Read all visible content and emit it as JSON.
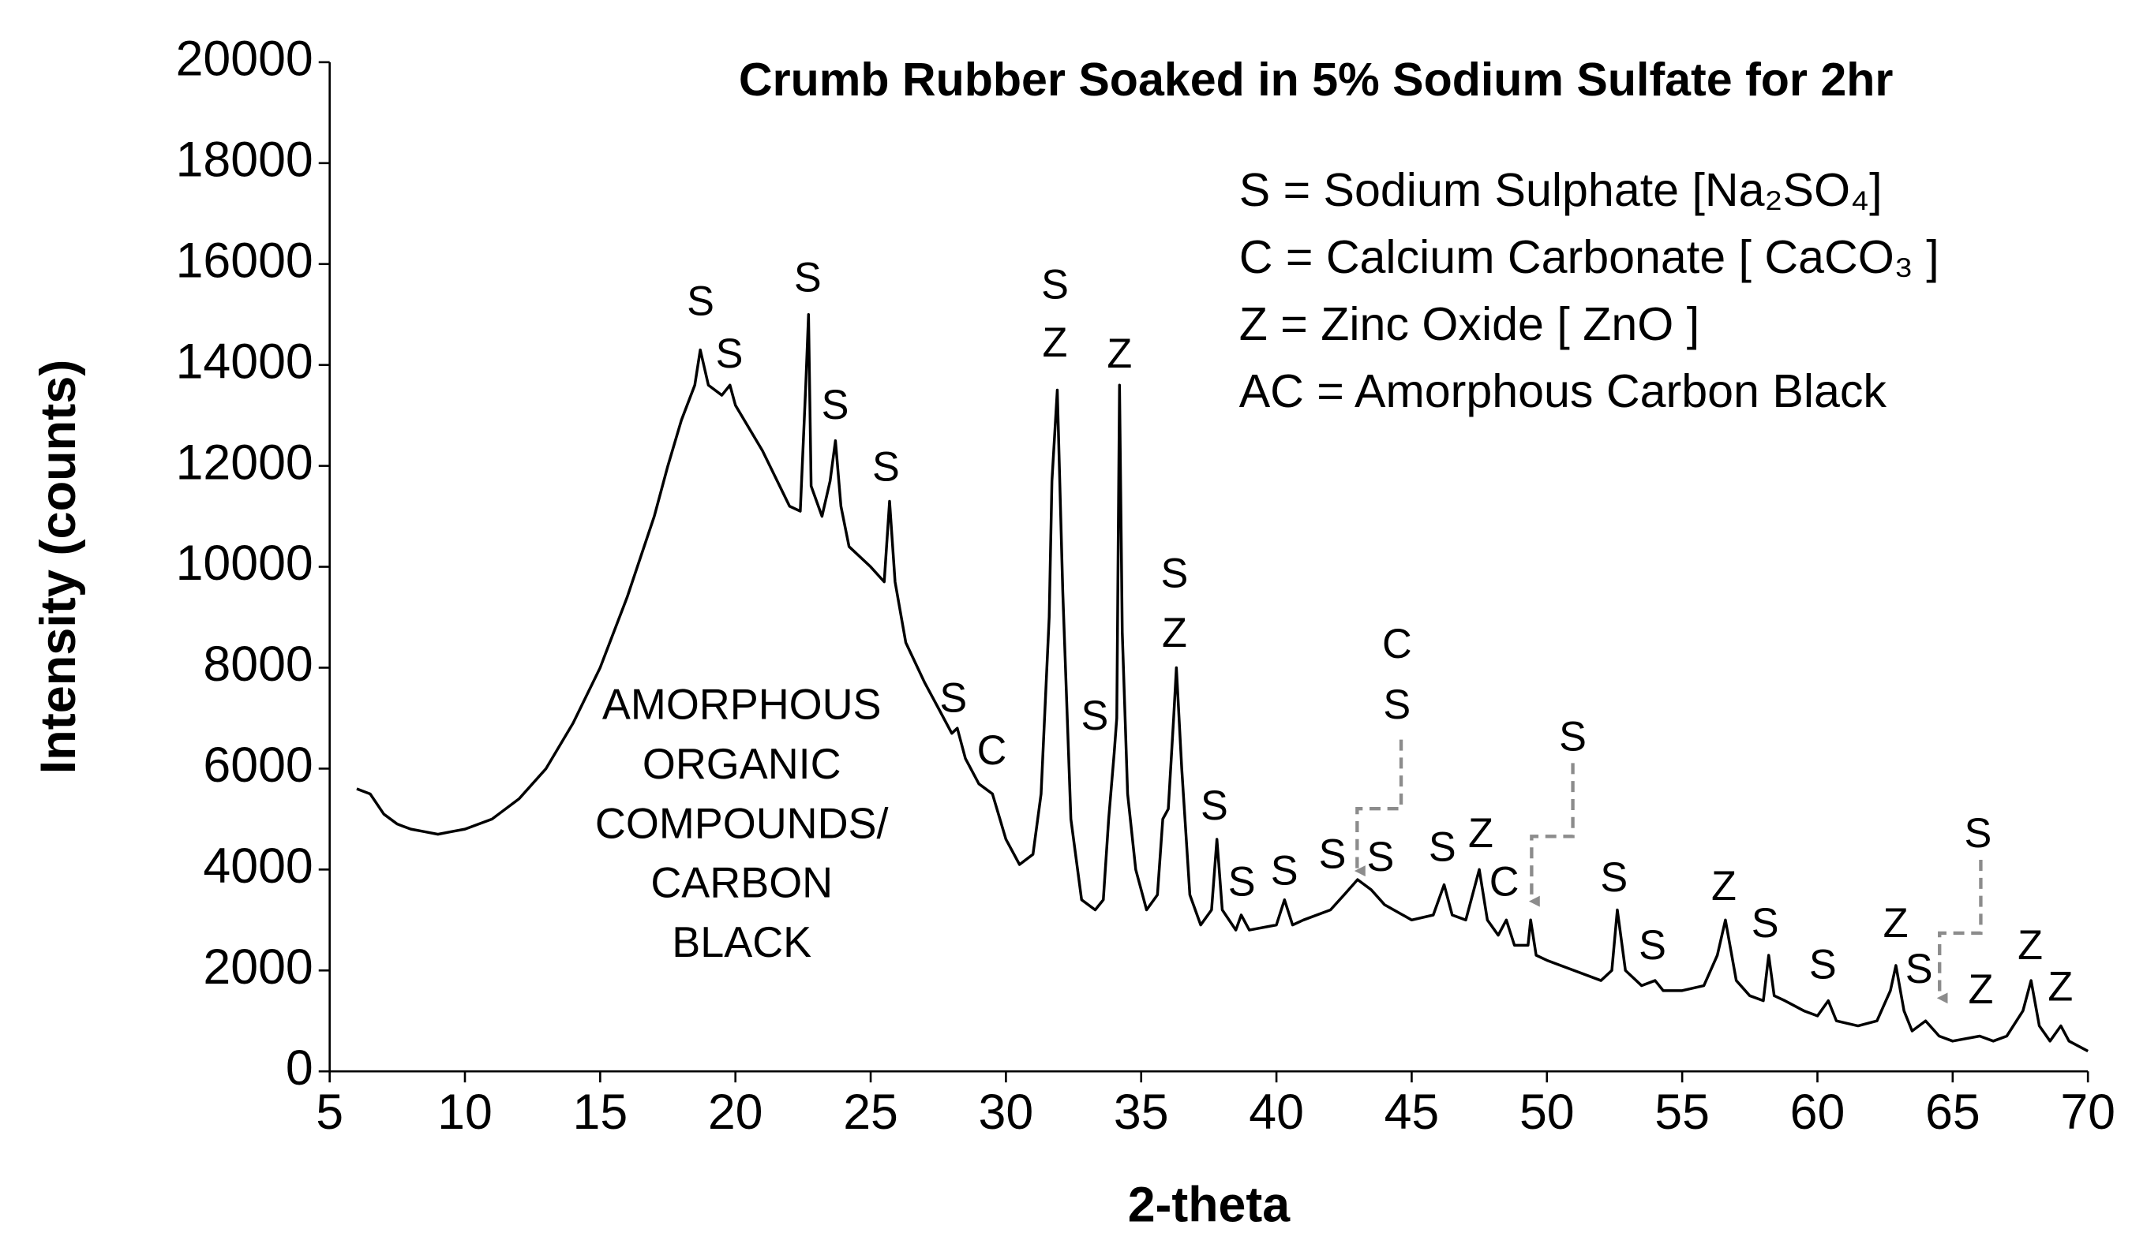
{
  "chart_data": {
    "type": "line",
    "title": "Crumb Rubber Soaked in 5% Sodium Sulfate for 2hr",
    "x_label": "2-theta",
    "y_label": "Intensity (counts)",
    "xlim": [
      5,
      70
    ],
    "xticks": [
      5,
      10,
      15,
      20,
      25,
      30,
      35,
      40,
      45,
      50,
      55,
      60,
      65,
      70
    ],
    "ylim": [
      0,
      20000
    ],
    "yticks": [
      0,
      2000,
      4000,
      6000,
      8000,
      10000,
      12000,
      14000,
      16000,
      18000,
      20000
    ],
    "legend_lines": [
      "S = Sodium Sulphate [Na₂SO₄]",
      "C = Calcium Carbonate [ CaCO₃ ]",
      "Z = Zinc Oxide [ ZnO ]",
      "AC = Amorphous Carbon Black"
    ],
    "region_label": [
      "AMORPHOUS",
      "ORGANIC",
      "COMPOUNDS/",
      "CARBON",
      "BLACK"
    ],
    "peak_labels": [
      "S",
      "S",
      "S",
      "S",
      "S",
      "S",
      "Z",
      "Z",
      "S",
      "S",
      "Z",
      "S",
      "C",
      "C",
      "S",
      "S",
      "S",
      "S",
      "S",
      "S",
      "S",
      "S",
      "Z",
      "C",
      "S",
      "S",
      "Z",
      "S",
      "S",
      "Z",
      "S",
      "Z",
      "S",
      "Z",
      "Z"
    ],
    "series": [
      {
        "name": "Intensity",
        "color": "#000000",
        "x": [
          6.0,
          6.5,
          7,
          7.5,
          8,
          8.5,
          9,
          9.5,
          10,
          11,
          12,
          13,
          14,
          15,
          16,
          17,
          17.5,
          18,
          18.5,
          18.7,
          19,
          19.5,
          19.8,
          20,
          21,
          22,
          22.4,
          22.6,
          22.7,
          22.8,
          23.2,
          23.5,
          23.7,
          23.9,
          24.2,
          25,
          25.5,
          25.7,
          25.9,
          26.3,
          27,
          27.5,
          28,
          28.2,
          28.5,
          29,
          29.5,
          30,
          30.5,
          31,
          31.3,
          31.6,
          31.7,
          31.9,
          32.1,
          32.4,
          32.8,
          33.3,
          33.6,
          33.8,
          34.0,
          34.1,
          34.2,
          34.3,
          34.5,
          34.8,
          35.2,
          35.6,
          35.8,
          36.0,
          36.2,
          36.3,
          36.5,
          36.8,
          37.2,
          37.6,
          37.8,
          38.0,
          38.5,
          38.7,
          39,
          40,
          40.3,
          40.6,
          41,
          42,
          42.5,
          43,
          43.5,
          44,
          45,
          45.8,
          46.2,
          46.5,
          47,
          47.5,
          47.8,
          48.2,
          48.5,
          48.8,
          49.3,
          49.4,
          49.6,
          50,
          51,
          52,
          52.4,
          52.6,
          52.9,
          53.5,
          54,
          54.3,
          55,
          55.8,
          56.3,
          56.6,
          57,
          57.5,
          58,
          58.2,
          58.4,
          58.8,
          59.5,
          60,
          60.4,
          60.7,
          61.5,
          62.2,
          62.7,
          62.9,
          63.2,
          63.5,
          64,
          64.5,
          65,
          66,
          66.5,
          67,
          67.6,
          67.9,
          68.2,
          68.6,
          69,
          69.3,
          70
        ],
        "values": [
          5600,
          5500,
          5100,
          4900,
          4800,
          4750,
          4700,
          4750,
          4800,
          5000,
          5400,
          6000,
          6900,
          8000,
          9400,
          11000,
          12000,
          12900,
          13600,
          14300,
          13600,
          13400,
          13600,
          13200,
          12300,
          11200,
          11100,
          13600,
          15000,
          11600,
          11000,
          11700,
          12500,
          11200,
          10400,
          10000,
          9700,
          11300,
          9700,
          8500,
          7700,
          7200,
          6700,
          6800,
          6200,
          5700,
          5500,
          4600,
          4100,
          4300,
          5500,
          9000,
          11700,
          13500,
          9500,
          5000,
          3400,
          3200,
          3400,
          5000,
          6300,
          7000,
          13600,
          8700,
          5500,
          4000,
          3200,
          3500,
          5000,
          5200,
          7000,
          8000,
          6000,
          3500,
          2900,
          3200,
          4600,
          3200,
          2800,
          3100,
          2800,
          2900,
          3400,
          2900,
          3000,
          3200,
          3500,
          3800,
          3600,
          3300,
          3000,
          3100,
          3700,
          3100,
          3000,
          4000,
          3000,
          2700,
          3000,
          2500,
          2500,
          3000,
          2300,
          2200,
          2000,
          1800,
          2000,
          3200,
          2000,
          1700,
          1800,
          1600,
          1600,
          1700,
          2300,
          3000,
          1800,
          1500,
          1400,
          2300,
          1500,
          1400,
          1200,
          1100,
          1400,
          1000,
          900,
          1000,
          1600,
          2100,
          1200,
          800,
          1000,
          700,
          600,
          700,
          600,
          700,
          1200,
          1800,
          900,
          600,
          900,
          600,
          400
        ]
      }
    ]
  }
}
